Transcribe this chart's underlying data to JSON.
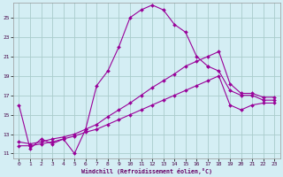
{
  "xlabel": "Windchill (Refroidissement éolien,°C)",
  "xlim": [
    -0.5,
    23.5
  ],
  "ylim": [
    10.5,
    26.5
  ],
  "xticks": [
    0,
    1,
    2,
    3,
    4,
    5,
    6,
    7,
    8,
    9,
    10,
    11,
    12,
    13,
    14,
    15,
    16,
    17,
    18,
    19,
    20,
    21,
    22,
    23
  ],
  "yticks": [
    11,
    13,
    15,
    17,
    19,
    21,
    23,
    25
  ],
  "background_color": "#d4eef4",
  "grid_color": "#aacccc",
  "line_color": "#990099",
  "line1_x": [
    0,
    1,
    2,
    3,
    4,
    5,
    6,
    7,
    8,
    9,
    10,
    11,
    12,
    13,
    14,
    15,
    16,
    17
  ],
  "line1_y": [
    16.0,
    11.5,
    12.5,
    12.0,
    12.5,
    11.0,
    13.5,
    18.0,
    19.5,
    22.0,
    25.0,
    25.8,
    26.3,
    25.8,
    24.3,
    23.5,
    21.0,
    20.0
  ],
  "line2_x": [
    17,
    18,
    19,
    20,
    21,
    22,
    23
  ],
  "line2_y": [
    20.0,
    19.5,
    17.5,
    17.0,
    17.0,
    16.5,
    16.5
  ],
  "line3_x": [
    0,
    1,
    2,
    3,
    4,
    5,
    6,
    7,
    8,
    9,
    10,
    11,
    12,
    13,
    14,
    15,
    16,
    17,
    18,
    19,
    20,
    21,
    22,
    23
  ],
  "line3_y": [
    12.2,
    12.0,
    12.2,
    12.5,
    12.7,
    13.0,
    13.5,
    14.0,
    14.8,
    15.5,
    16.2,
    17.0,
    17.8,
    18.5,
    19.2,
    20.0,
    20.5,
    21.0,
    21.5,
    18.2,
    17.2,
    17.2,
    16.8,
    16.8
  ],
  "line4_x": [
    0,
    1,
    2,
    3,
    4,
    5,
    6,
    7,
    8,
    9,
    10,
    11,
    12,
    13,
    14,
    15,
    16,
    17,
    18,
    19,
    20,
    21,
    22,
    23
  ],
  "line4_y": [
    11.8,
    11.8,
    12.0,
    12.2,
    12.5,
    12.8,
    13.2,
    13.5,
    14.0,
    14.5,
    15.0,
    15.5,
    16.0,
    16.5,
    17.0,
    17.5,
    18.0,
    18.5,
    19.0,
    16.0,
    15.5,
    16.0,
    16.2,
    16.2
  ]
}
